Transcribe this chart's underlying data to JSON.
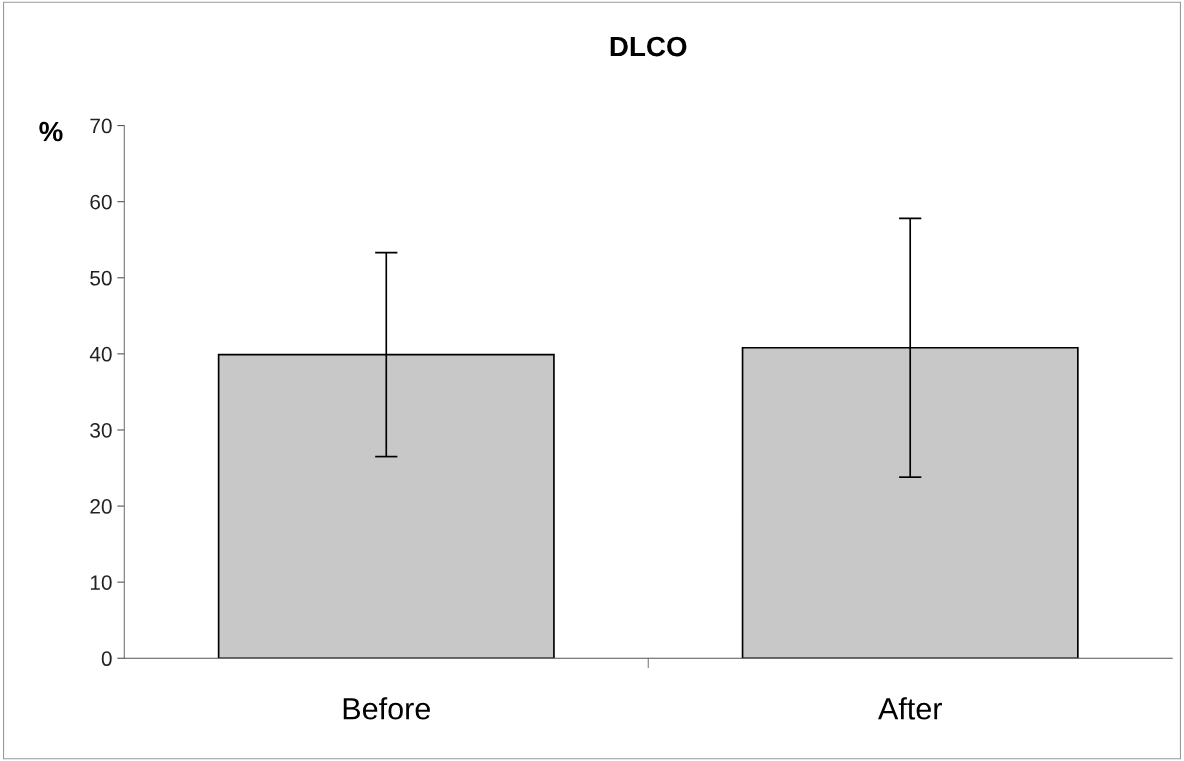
{
  "chart_data": {
    "type": "bar",
    "title": "DLCO",
    "ylabel": "%",
    "categories": [
      "Before",
      "After"
    ],
    "values": [
      39.9,
      40.8
    ],
    "errors": [
      13.4,
      17.0
    ],
    "color": "#c8c8c8",
    "ylim": [
      0,
      70
    ],
    "yticks": [
      0,
      10,
      20,
      30,
      40,
      50,
      60,
      70
    ],
    "grid": false,
    "legend": false
  }
}
